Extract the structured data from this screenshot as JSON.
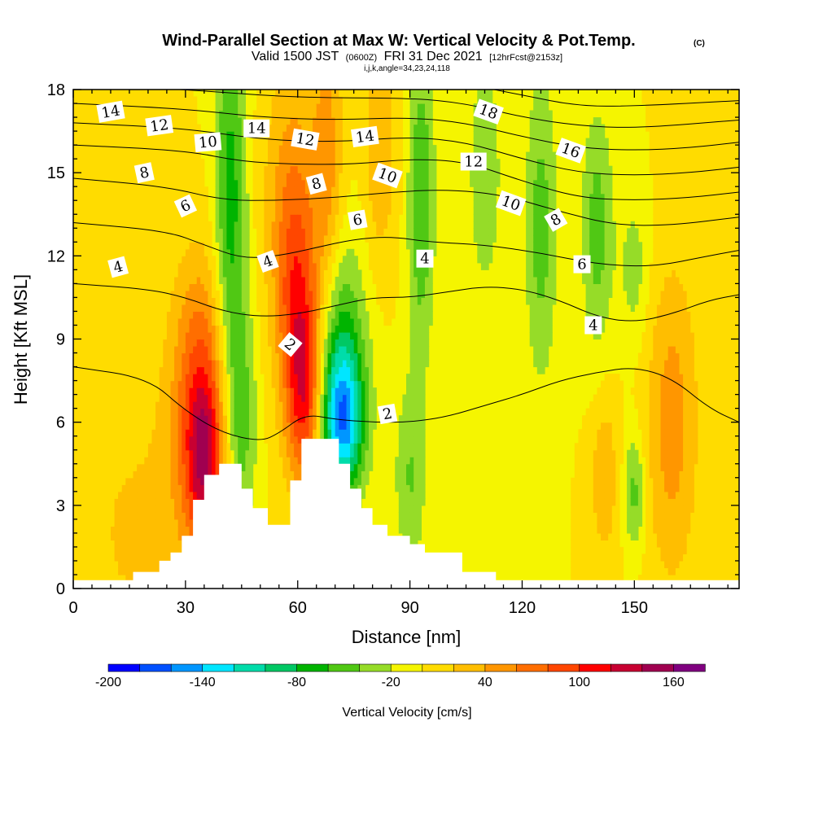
{
  "chart_data": {
    "type": "heatmap",
    "title": "Wind-Parallel Section at Max W: Vertical Velocity & Pot.Temp.",
    "title_mark": "(C)",
    "subtitle": {
      "valid": "Valid 1500 JST",
      "z": "(0600Z)",
      "date": "FRI 31 Dec 2021",
      "fcst": "[12hrFcst@2153z]"
    },
    "subtitle2": "i,j,k,angle=34,23,24,118",
    "xlabel": "Distance [nm]",
    "ylabel": "Height [Kft MSL]",
    "xlim": [
      0,
      178
    ],
    "ylim": [
      0,
      18
    ],
    "x_ticks": [
      "0",
      "30",
      "60",
      "90",
      "120",
      "150"
    ],
    "y_ticks": [
      "0",
      "3",
      "6",
      "9",
      "12",
      "15",
      "18"
    ],
    "colorbar": {
      "label": "Vertical Velocity [cm/s]",
      "range": [
        -200,
        180
      ],
      "step": 20,
      "tick_labels": [
        "-200",
        "-140",
        "-80",
        "-20",
        "40",
        "100",
        "160"
      ],
      "colors": [
        "#0000ff",
        "#0050ff",
        "#0096ff",
        "#00e6ff",
        "#00dcaa",
        "#00c864",
        "#00b400",
        "#50c814",
        "#96dc28",
        "#f5f500",
        "#ffdc00",
        "#ffbe00",
        "#ff9600",
        "#ff6e00",
        "#ff4600",
        "#ff0000",
        "#c80032",
        "#a00050",
        "#800080"
      ]
    },
    "terrain": [
      [
        0,
        0.3
      ],
      [
        16,
        0.3
      ],
      [
        16,
        0.6
      ],
      [
        23,
        0.6
      ],
      [
        23,
        1
      ],
      [
        26,
        1
      ],
      [
        26,
        1.3
      ],
      [
        29,
        1.3
      ],
      [
        29,
        1.9
      ],
      [
        32,
        1.9
      ],
      [
        32,
        3.2
      ],
      [
        35,
        3.2
      ],
      [
        35,
        4.1
      ],
      [
        39,
        4.1
      ],
      [
        39,
        4.5
      ],
      [
        45,
        4.5
      ],
      [
        45,
        3.6
      ],
      [
        48,
        3.6
      ],
      [
        48,
        2.9
      ],
      [
        52,
        2.9
      ],
      [
        52,
        2.3
      ],
      [
        58,
        2.3
      ],
      [
        58,
        3.9
      ],
      [
        61,
        3.9
      ],
      [
        61,
        5.4
      ],
      [
        71,
        5.4
      ],
      [
        71,
        4.5
      ],
      [
        74,
        4.5
      ],
      [
        74,
        3.6
      ],
      [
        77,
        3.6
      ],
      [
        77,
        2.9
      ],
      [
        80,
        2.9
      ],
      [
        80,
        2.3
      ],
      [
        84,
        2.3
      ],
      [
        84,
        1.9
      ],
      [
        90,
        1.9
      ],
      [
        90,
        1.6
      ],
      [
        94,
        1.6
      ],
      [
        94,
        1.3
      ],
      [
        104,
        1.3
      ],
      [
        104,
        0.6
      ],
      [
        113,
        0.6
      ],
      [
        113,
        0.3
      ],
      [
        178,
        0.3
      ]
    ],
    "w_field": [
      {
        "x": 35,
        "z": 4.5,
        "sx": 3.5,
        "sz": 2.2,
        "w": 100
      },
      {
        "x": 34,
        "z": 8.0,
        "sx": 5,
        "sz": 3,
        "w": 60
      },
      {
        "x": 30,
        "z": 4.0,
        "sx": 8,
        "sz": 4,
        "w": 30
      },
      {
        "x": 62,
        "z": 7.0,
        "sx": 3.5,
        "sz": 2.5,
        "w": 100
      },
      {
        "x": 60,
        "z": 10.5,
        "sx": 4,
        "sz": 3,
        "w": 60
      },
      {
        "x": 58,
        "z": 14.0,
        "sx": 5,
        "sz": 4,
        "w": 45
      },
      {
        "x": 42,
        "z": 14.0,
        "sx": 3,
        "sz": 5,
        "w": -70
      },
      {
        "x": 45,
        "z": 6.0,
        "sx": 3,
        "sz": 3,
        "w": -50
      },
      {
        "x": 72,
        "z": 6.0,
        "sx": 4,
        "sz": 1.8,
        "w": -120
      },
      {
        "x": 71,
        "z": 8.5,
        "sx": 5,
        "sz": 3,
        "w": -70
      },
      {
        "x": 90,
        "z": 4.0,
        "sx": 3,
        "sz": 2.5,
        "w": -40
      },
      {
        "x": 93,
        "z": 14.0,
        "sx": 2.5,
        "sz": 4,
        "w": -60
      },
      {
        "x": 68,
        "z": 15.0,
        "sx": 3,
        "sz": 4,
        "w": 50
      },
      {
        "x": 82,
        "z": 16.0,
        "sx": 3,
        "sz": 3,
        "w": 40
      },
      {
        "x": 110,
        "z": 15.0,
        "sx": 3,
        "sz": 3,
        "w": -40
      },
      {
        "x": 125,
        "z": 13.0,
        "sx": 3,
        "sz": 4,
        "w": -50
      },
      {
        "x": 140,
        "z": 13.0,
        "sx": 3,
        "sz": 3,
        "w": -50
      },
      {
        "x": 160,
        "z": 6.0,
        "sx": 5,
        "sz": 4,
        "w": 50
      },
      {
        "x": 142,
        "z": 4.0,
        "sx": 2.5,
        "sz": 2,
        "w": 40
      },
      {
        "x": 150,
        "z": 3.5,
        "sx": 2,
        "sz": 1.5,
        "w": -50
      },
      {
        "x": 150,
        "z": 11.5,
        "sx": 3,
        "sz": 2,
        "w": -30
      },
      {
        "x": 15,
        "z": 2.0,
        "sx": 6,
        "sz": 2,
        "w": 25
      }
    ],
    "theta_contours": [
      {
        "label": "2",
        "points": [
          [
            0,
            8.0
          ],
          [
            20,
            7.6
          ],
          [
            30,
            6.4
          ],
          [
            40,
            5.6
          ],
          [
            50,
            5.3
          ],
          [
            55,
            5.6
          ],
          [
            62,
            6.3
          ],
          [
            70,
            6.1
          ],
          [
            80,
            6.0
          ],
          [
            90,
            6.0
          ],
          [
            100,
            6.2
          ],
          [
            110,
            6.6
          ],
          [
            120,
            7.0
          ],
          [
            130,
            7.5
          ],
          [
            140,
            7.8
          ],
          [
            150,
            8.0
          ],
          [
            160,
            7.6
          ],
          [
            170,
            6.5
          ],
          [
            178,
            6.0
          ]
        ]
      },
      {
        "label": "4",
        "points": [
          [
            0,
            11.0
          ],
          [
            20,
            10.8
          ],
          [
            30,
            10.5
          ],
          [
            40,
            10.0
          ],
          [
            50,
            9.8
          ],
          [
            60,
            9.9
          ],
          [
            70,
            10.2
          ],
          [
            80,
            10.5
          ],
          [
            90,
            10.5
          ],
          [
            100,
            10.7
          ],
          [
            110,
            10.9
          ],
          [
            120,
            10.8
          ],
          [
            130,
            10.4
          ],
          [
            140,
            9.8
          ],
          [
            150,
            9.6
          ],
          [
            160,
            9.9
          ],
          [
            170,
            10.4
          ],
          [
            178,
            10.6
          ]
        ]
      },
      {
        "label": "6",
        "points": [
          [
            0,
            13.2
          ],
          [
            25,
            12.9
          ],
          [
            35,
            12.4
          ],
          [
            45,
            11.9
          ],
          [
            55,
            12.0
          ],
          [
            65,
            12.3
          ],
          [
            75,
            12.6
          ],
          [
            85,
            12.7
          ],
          [
            95,
            12.5
          ],
          [
            110,
            12.4
          ],
          [
            125,
            12.1
          ],
          [
            140,
            11.7
          ],
          [
            155,
            11.6
          ],
          [
            170,
            12.0
          ],
          [
            178,
            12.2
          ]
        ]
      },
      {
        "label": "8",
        "points": [
          [
            0,
            14.8
          ],
          [
            25,
            14.5
          ],
          [
            40,
            14.0
          ],
          [
            55,
            14.0
          ],
          [
            70,
            14.1
          ],
          [
            85,
            14.3
          ],
          [
            100,
            14.4
          ],
          [
            115,
            14.2
          ],
          [
            130,
            13.6
          ],
          [
            145,
            13.1
          ],
          [
            160,
            13.1
          ],
          [
            178,
            13.4
          ]
        ]
      },
      {
        "label": "10",
        "points": [
          [
            0,
            16.0
          ],
          [
            30,
            15.8
          ],
          [
            45,
            15.4
          ],
          [
            60,
            15.3
          ],
          [
            75,
            15.3
          ],
          [
            90,
            15.5
          ],
          [
            105,
            15.4
          ],
          [
            120,
            14.7
          ],
          [
            135,
            14.1
          ],
          [
            150,
            14.0
          ],
          [
            165,
            14.1
          ],
          [
            178,
            14.3
          ]
        ]
      },
      {
        "label": "12",
        "points": [
          [
            0,
            16.8
          ],
          [
            30,
            16.6
          ],
          [
            50,
            16.2
          ],
          [
            70,
            16.1
          ],
          [
            90,
            16.3
          ],
          [
            105,
            16.1
          ],
          [
            120,
            15.5
          ],
          [
            135,
            15.0
          ],
          [
            150,
            14.9
          ],
          [
            165,
            15.0
          ],
          [
            178,
            15.2
          ]
        ]
      },
      {
        "label": "14",
        "points": [
          [
            0,
            17.5
          ],
          [
            30,
            17.3
          ],
          [
            50,
            17.0
          ],
          [
            70,
            16.9
          ],
          [
            90,
            17.0
          ],
          [
            105,
            16.8
          ],
          [
            120,
            16.3
          ],
          [
            135,
            15.9
          ],
          [
            150,
            15.8
          ],
          [
            165,
            15.9
          ],
          [
            178,
            16.1
          ]
        ]
      },
      {
        "label": "16",
        "points": [
          [
            0,
            18.2
          ],
          [
            30,
            18.0
          ],
          [
            60,
            17.7
          ],
          [
            90,
            17.7
          ],
          [
            105,
            17.5
          ],
          [
            120,
            17.0
          ],
          [
            135,
            16.7
          ],
          [
            150,
            16.6
          ],
          [
            178,
            16.9
          ]
        ]
      },
      {
        "label": "18",
        "points": [
          [
            60,
            18.4
          ],
          [
            90,
            18.4
          ],
          [
            105,
            18.2
          ],
          [
            120,
            17.8
          ],
          [
            135,
            17.4
          ],
          [
            150,
            17.4
          ],
          [
            178,
            17.6
          ]
        ]
      }
    ],
    "contour_labels": [
      {
        "text": "14",
        "x": 10,
        "z": 17.2,
        "rot": -10
      },
      {
        "text": "12",
        "x": 23,
        "z": 16.7,
        "rot": -8
      },
      {
        "text": "10",
        "x": 36,
        "z": 16.1,
        "rot": -5
      },
      {
        "text": "8",
        "x": 19,
        "z": 15.0,
        "rot": -12
      },
      {
        "text": "6",
        "x": 30,
        "z": 13.8,
        "rot": -25
      },
      {
        "text": "4",
        "x": 12,
        "z": 11.6,
        "rot": -15
      },
      {
        "text": "14",
        "x": 49,
        "z": 16.6,
        "rot": 0
      },
      {
        "text": "12",
        "x": 62,
        "z": 16.2,
        "rot": 10
      },
      {
        "text": "8",
        "x": 65,
        "z": 14.6,
        "rot": -15
      },
      {
        "text": "4",
        "x": 52,
        "z": 11.8,
        "rot": -20
      },
      {
        "text": "2",
        "x": 58,
        "z": 8.8,
        "rot": 40
      },
      {
        "text": "14",
        "x": 78,
        "z": 16.3,
        "rot": -8
      },
      {
        "text": "10",
        "x": 84,
        "z": 14.9,
        "rot": 20
      },
      {
        "text": "6",
        "x": 76,
        "z": 13.3,
        "rot": -10
      },
      {
        "text": "4",
        "x": 94,
        "z": 11.9,
        "rot": 0
      },
      {
        "text": "2",
        "x": 84,
        "z": 6.3,
        "rot": -10
      },
      {
        "text": "18",
        "x": 111,
        "z": 17.2,
        "rot": 20
      },
      {
        "text": "12",
        "x": 107,
        "z": 15.4,
        "rot": 0
      },
      {
        "text": "16",
        "x": 133,
        "z": 15.8,
        "rot": 20
      },
      {
        "text": "10",
        "x": 117,
        "z": 13.9,
        "rot": 20
      },
      {
        "text": "8",
        "x": 129,
        "z": 13.3,
        "rot": -30
      },
      {
        "text": "6",
        "x": 136,
        "z": 11.7,
        "rot": 0
      },
      {
        "text": "4",
        "x": 139,
        "z": 9.5,
        "rot": 0
      }
    ]
  }
}
